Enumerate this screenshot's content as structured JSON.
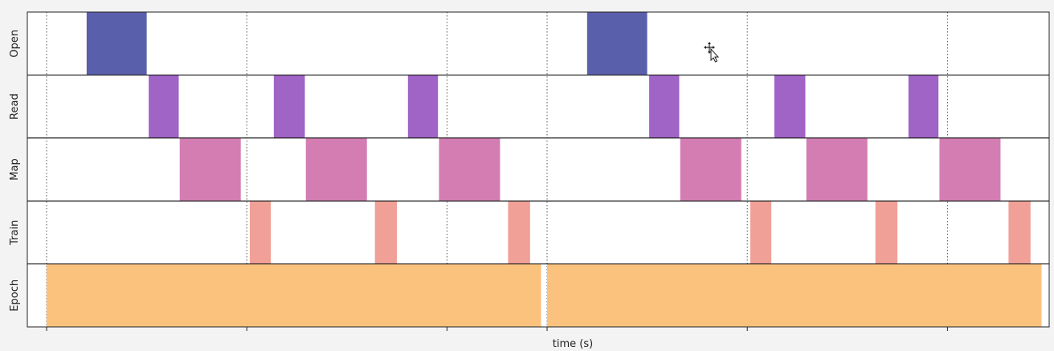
{
  "chart_data": {
    "type": "timeline",
    "title": "",
    "xlabel": "time (s)",
    "ylabel": "",
    "xlim": [
      0,
      10
    ],
    "grid": true,
    "legend": "none",
    "x_ticks": [
      0,
      2,
      4,
      5,
      7,
      9
    ],
    "tick_labels_shown": false,
    "rows": [
      {
        "name": "Open",
        "color": "#5a5fac",
        "intervals": [
          [
            0.4,
            1.0
          ],
          [
            5.4,
            6.0
          ]
        ]
      },
      {
        "name": "Read",
        "color": "#a063c6",
        "intervals": [
          [
            1.02,
            1.32
          ],
          [
            2.27,
            2.58
          ],
          [
            3.61,
            3.91
          ],
          [
            6.02,
            6.32
          ],
          [
            7.27,
            7.58
          ],
          [
            8.61,
            8.91
          ]
        ]
      },
      {
        "name": "Map",
        "color": "#d47db3",
        "intervals": [
          [
            1.33,
            1.94
          ],
          [
            2.59,
            3.2
          ],
          [
            3.92,
            4.53
          ],
          [
            6.33,
            6.94
          ],
          [
            7.59,
            8.2
          ],
          [
            8.92,
            9.53
          ]
        ]
      },
      {
        "name": "Train",
        "color": "#f0a096",
        "intervals": [
          [
            2.03,
            2.24
          ],
          [
            3.28,
            3.5
          ],
          [
            4.61,
            4.83
          ],
          [
            7.03,
            7.24
          ],
          [
            8.28,
            8.5
          ],
          [
            9.61,
            9.83
          ]
        ]
      },
      {
        "name": "Epoch",
        "color": "#fbc27e",
        "intervals": [
          [
            0.0,
            4.94
          ],
          [
            5.0,
            9.94
          ]
        ]
      }
    ]
  }
}
